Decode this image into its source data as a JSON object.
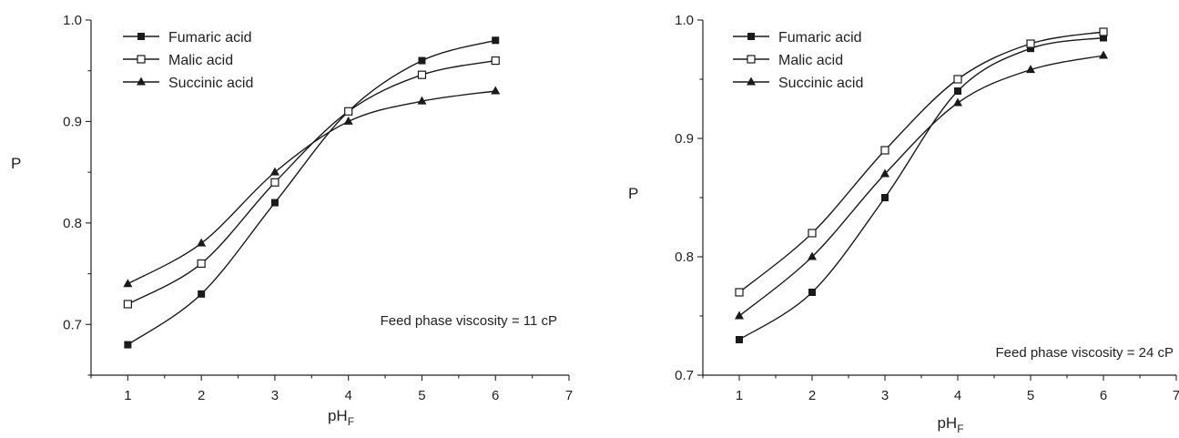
{
  "chart_data": [
    {
      "type": "line",
      "xlabel": "pH",
      "xlabel_sub": "F",
      "ylabel": "P",
      "xlim": [
        0.5,
        7
      ],
      "ylim": [
        0.65,
        1.0
      ],
      "xticks": [
        1,
        2,
        3,
        4,
        5,
        6,
        7
      ],
      "yticks": [
        0.7,
        0.8,
        0.9,
        1.0
      ],
      "ytick_labels": [
        "0.7",
        "0.8",
        "0.9",
        "1.0"
      ],
      "legend_position": "top-left",
      "annotation": "Feed phase viscosity = 11 cP",
      "grid": false,
      "x": [
        1,
        2,
        3,
        4,
        5,
        6
      ],
      "series": [
        {
          "name": "Fumaric acid",
          "marker": "square-filled",
          "values": [
            0.68,
            0.73,
            0.82,
            0.91,
            0.96,
            0.98
          ]
        },
        {
          "name": "Malic acid",
          "marker": "square-open",
          "values": [
            0.72,
            0.76,
            0.84,
            0.91,
            0.946,
            0.96
          ]
        },
        {
          "name": "Succinic acid",
          "marker": "triangle-filled",
          "values": [
            0.74,
            0.78,
            0.85,
            0.9,
            0.92,
            0.93
          ]
        }
      ]
    },
    {
      "type": "line",
      "xlabel": "pH",
      "xlabel_sub": "F",
      "ylabel": "P",
      "xlim": [
        0.5,
        7
      ],
      "ylim": [
        0.7,
        1.0
      ],
      "xticks": [
        1,
        2,
        3,
        4,
        5,
        6,
        7
      ],
      "yticks": [
        0.7,
        0.8,
        0.9,
        1.0
      ],
      "ytick_labels": [
        "0.7",
        "0.8",
        "0.9",
        "1.0"
      ],
      "legend_position": "top-left",
      "annotation": "Feed phase viscosity = 24 cP",
      "grid": false,
      "x": [
        1,
        2,
        3,
        4,
        5,
        6
      ],
      "series": [
        {
          "name": "Fumaric acid",
          "marker": "square-filled",
          "values": [
            0.73,
            0.77,
            0.85,
            0.94,
            0.976,
            0.985
          ]
        },
        {
          "name": "Malic acid",
          "marker": "square-open",
          "values": [
            0.77,
            0.82,
            0.89,
            0.95,
            0.98,
            0.99
          ]
        },
        {
          "name": "Succinic acid",
          "marker": "triangle-filled",
          "values": [
            0.75,
            0.8,
            0.87,
            0.93,
            0.958,
            0.97
          ]
        }
      ]
    }
  ],
  "colors": {
    "line": "#1a1a1a",
    "axis": "#222222",
    "background": "#ffffff"
  }
}
